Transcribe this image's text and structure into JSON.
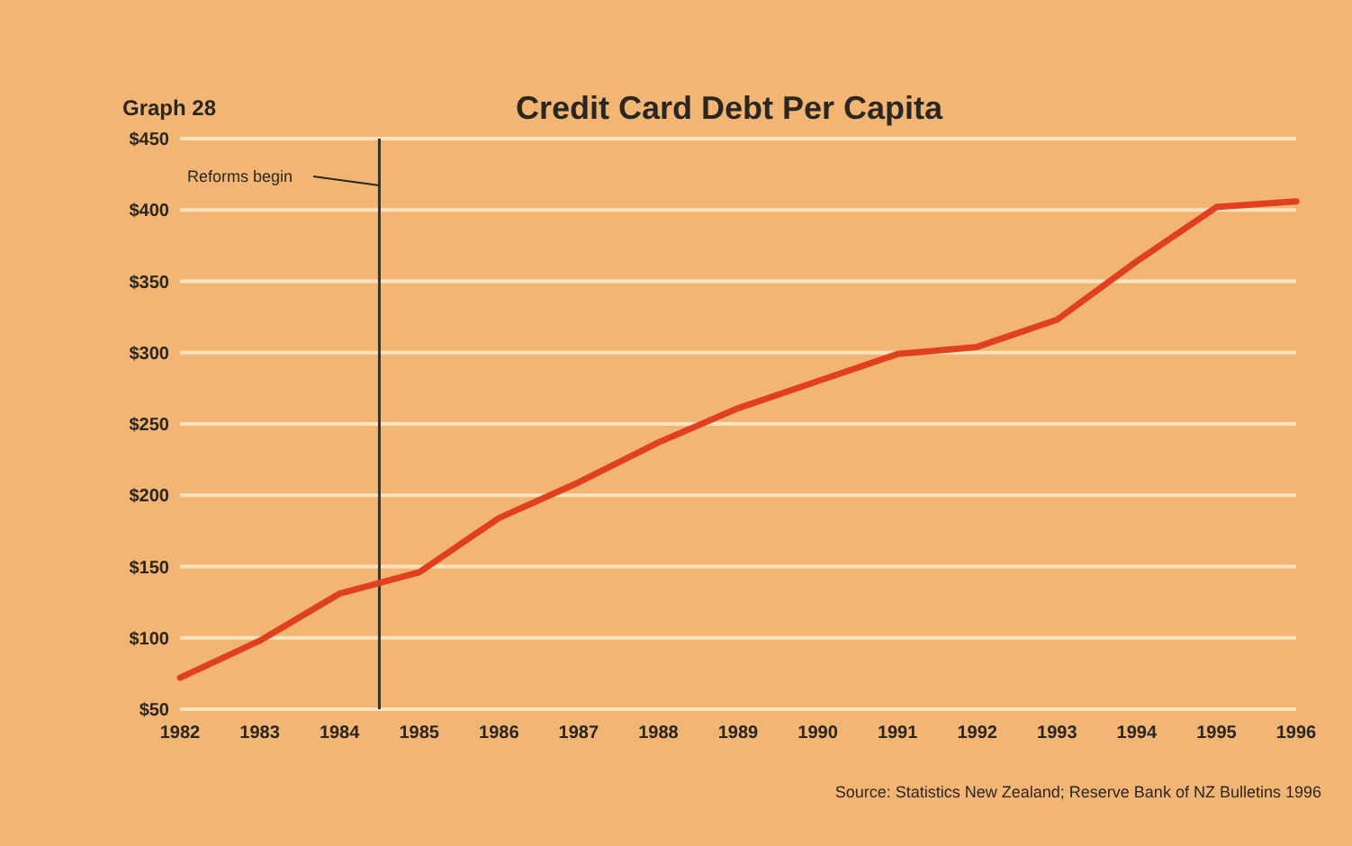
{
  "chart_data": {
    "type": "line",
    "title": "Credit Card Debt Per Capita",
    "subtitle": "Graph 28",
    "x": [
      1982,
      1983,
      1984,
      1985,
      1986,
      1987,
      1988,
      1989,
      1990,
      1991,
      1992,
      1993,
      1994,
      1995,
      1996
    ],
    "series": [
      {
        "color": "#e0401e",
        "values": [
          72,
          98,
          131,
          146,
          184,
          209,
          237,
          261,
          280,
          299,
          304,
          323,
          364,
          402,
          406
        ]
      }
    ],
    "xlim": [
      1982,
      1996
    ],
    "xticks": [
      1982,
      1983,
      1984,
      1985,
      1986,
      1987,
      1988,
      1989,
      1990,
      1991,
      1992,
      1993,
      1994,
      1995,
      1996
    ],
    "ylim": [
      50,
      450
    ],
    "yticks": [
      {
        "value": 50,
        "label": "$50"
      },
      {
        "value": 100,
        "label": "$100"
      },
      {
        "value": 150,
        "label": "$150"
      },
      {
        "value": 200,
        "label": "$200"
      },
      {
        "value": 250,
        "label": "$250"
      },
      {
        "value": 300,
        "label": "$300"
      },
      {
        "value": 350,
        "label": "$350"
      },
      {
        "value": 400,
        "label": "$400"
      },
      {
        "value": 450,
        "label": "$450"
      }
    ],
    "grid": "y",
    "line_style": "solid",
    "marker": "none",
    "ref_lines": [
      {
        "axis": "x",
        "value": 1984.5,
        "label": "Reforms begin",
        "color": "#3a3020"
      }
    ],
    "annotations": [
      "Source: Statistics New Zealand; Reserve Bank  of NZ Bulletins 1996"
    ]
  }
}
